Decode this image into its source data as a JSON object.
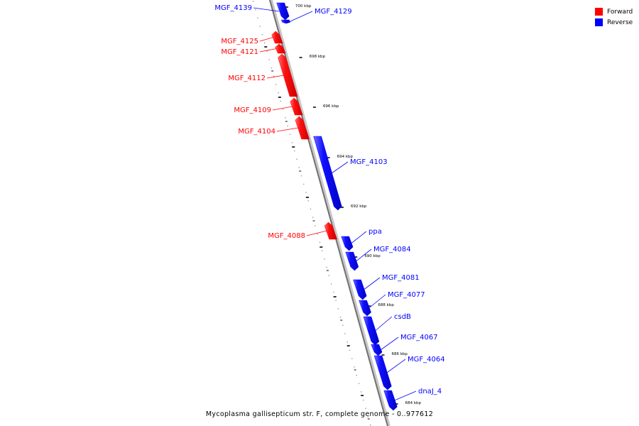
{
  "legend": {
    "forward_label": "Forward",
    "reverse_label": "Reverse",
    "forward_color": "#ff0000",
    "reverse_color": "#0000ff"
  },
  "caption": "Mycoplasma gallisepticum str. F, complete genome - 0..977612",
  "ticks": [
    "700 kbp",
    "698 kbp",
    "696 kbp",
    "694 kbp",
    "692 kbp",
    "690 kbp",
    "688 kbp",
    "686 kbp",
    "684 kbp"
  ],
  "genes": [
    {
      "label": "MGF_4139",
      "strand": "reverse"
    },
    {
      "label": "MGF_4129",
      "strand": "reverse"
    },
    {
      "label": "MGF_4125",
      "strand": "forward"
    },
    {
      "label": "MGF_4121",
      "strand": "forward"
    },
    {
      "label": "MGF_4112",
      "strand": "forward"
    },
    {
      "label": "MGF_4109",
      "strand": "forward"
    },
    {
      "label": "MGF_4104",
      "strand": "forward"
    },
    {
      "label": "MGF_4103",
      "strand": "reverse"
    },
    {
      "label": "MGF_4088",
      "strand": "forward"
    },
    {
      "label": "ppa",
      "strand": "reverse"
    },
    {
      "label": "MGF_4084",
      "strand": "reverse"
    },
    {
      "label": "MGF_4081",
      "strand": "reverse"
    },
    {
      "label": "MGF_4077",
      "strand": "reverse"
    },
    {
      "label": "csdB",
      "strand": "reverse"
    },
    {
      "label": "MGF_4067",
      "strand": "reverse"
    },
    {
      "label": "MGF_4064",
      "strand": "reverse"
    },
    {
      "label": "dnaJ_4",
      "strand": "reverse"
    }
  ]
}
